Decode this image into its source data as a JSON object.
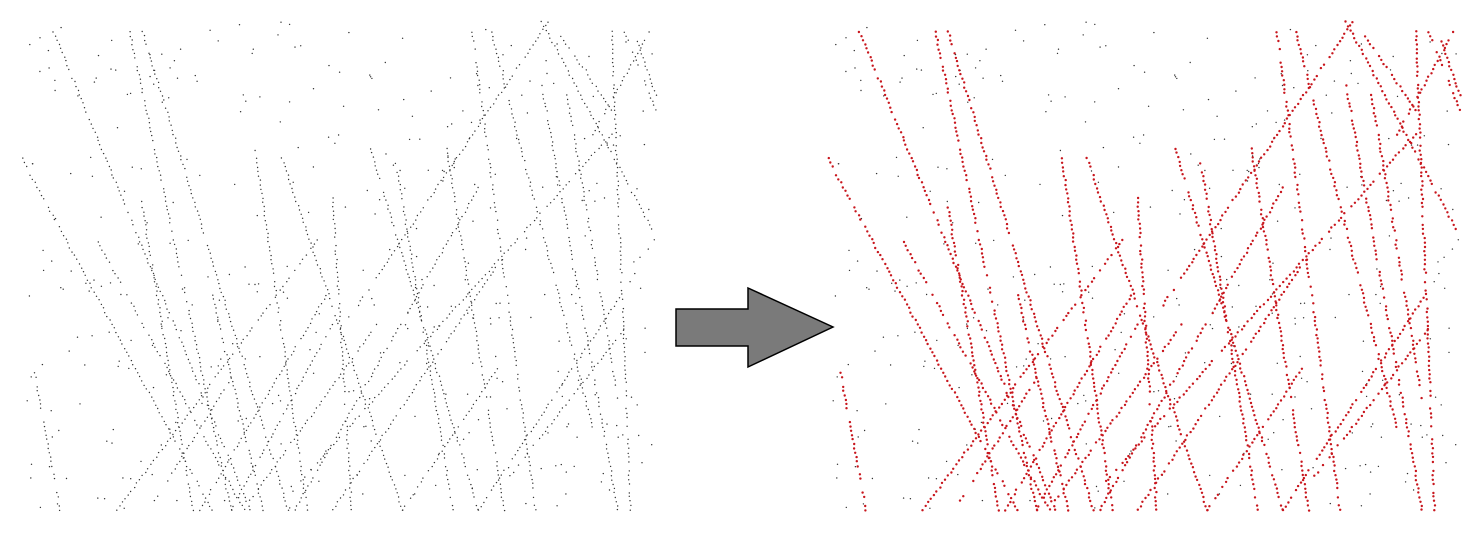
{
  "colors": {
    "background": "#ffffff",
    "input_dots": "#333333",
    "noise_dots": "#333333",
    "track_dots": "#c8161d",
    "arrow_fill": "#7a7a7a",
    "arrow_stroke": "#000000"
  },
  "diagram": {
    "panels": [
      {
        "name": "input-hits",
        "highlight_tracks": false
      },
      {
        "name": "reconstructed-tracks",
        "highlight_tracks": true
      }
    ],
    "arrow": {
      "direction": "right",
      "icon": "right-arrow-icon"
    },
    "tracks": [
      [
        0.05,
        0.02,
        0.36,
        1.0
      ],
      [
        0.17,
        0.02,
        0.33,
        1.0
      ],
      [
        0.19,
        0.02,
        0.42,
        1.0
      ],
      [
        0.0,
        0.28,
        0.3,
        1.0
      ],
      [
        0.12,
        0.45,
        0.35,
        1.0
      ],
      [
        0.19,
        0.38,
        0.27,
        1.0
      ],
      [
        0.3,
        0.56,
        0.38,
        1.0
      ],
      [
        0.37,
        0.28,
        0.45,
        1.0
      ],
      [
        0.41,
        0.28,
        0.6,
        1.0
      ],
      [
        0.49,
        0.36,
        0.52,
        1.0
      ],
      [
        0.55,
        0.26,
        0.72,
        1.0
      ],
      [
        0.59,
        0.29,
        0.68,
        1.0
      ],
      [
        0.67,
        0.26,
        0.76,
        1.0
      ],
      [
        0.71,
        0.02,
        0.81,
        1.0
      ],
      [
        0.74,
        0.02,
        0.9,
        0.83
      ],
      [
        0.82,
        0.13,
        0.94,
        1.0
      ],
      [
        0.86,
        0.15,
        0.94,
        0.77
      ],
      [
        0.93,
        0.02,
        0.96,
        1.0
      ],
      [
        0.95,
        0.02,
        1.0,
        0.18
      ],
      [
        0.99,
        0.02,
        0.9,
        0.23
      ],
      [
        0.97,
        0.04,
        1.0,
        0.15
      ],
      [
        0.85,
        0.03,
        0.93,
        0.18
      ],
      [
        0.82,
        0.0,
        1.0,
        0.44
      ],
      [
        0.28,
        1.0,
        0.48,
        0.56
      ],
      [
        0.15,
        1.0,
        0.47,
        0.44
      ],
      [
        0.43,
        1.0,
        0.72,
        0.34
      ],
      [
        0.49,
        1.0,
        0.76,
        0.48
      ],
      [
        0.72,
        1.0,
        0.95,
        0.55
      ],
      [
        0.53,
        0.58,
        0.83,
        0.0
      ],
      [
        0.44,
        0.94,
        0.93,
        0.23
      ],
      [
        0.36,
        0.98,
        0.56,
        0.62
      ],
      [
        0.33,
        1.0,
        0.49,
        0.62
      ],
      [
        0.02,
        0.72,
        0.06,
        1.0
      ],
      [
        0.21,
        0.98,
        0.33,
        0.73
      ],
      [
        0.6,
        1.0,
        0.75,
        0.71
      ],
      [
        0.77,
        0.93,
        0.95,
        0.63
      ]
    ],
    "noise_count": 360,
    "dot_spacing": 0.009,
    "seed": 17
  }
}
